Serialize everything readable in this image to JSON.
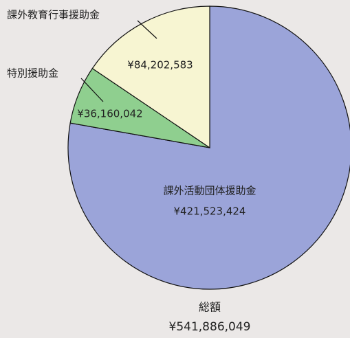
{
  "chart_data": {
    "type": "pie",
    "categories": [
      "課外活動団体援助金",
      "特別援助金",
      "課外教育行事援助金"
    ],
    "values": [
      421523424,
      36160042,
      84202583
    ],
    "value_labels": [
      "¥421,523,424",
      "¥36,160,042",
      "¥84,202,583"
    ],
    "colors": [
      "#9ba4d9",
      "#8fcf8f",
      "#f7f5d2"
    ],
    "total": {
      "label": "総額",
      "value": 541886049,
      "value_label": "¥541,886,049"
    }
  }
}
